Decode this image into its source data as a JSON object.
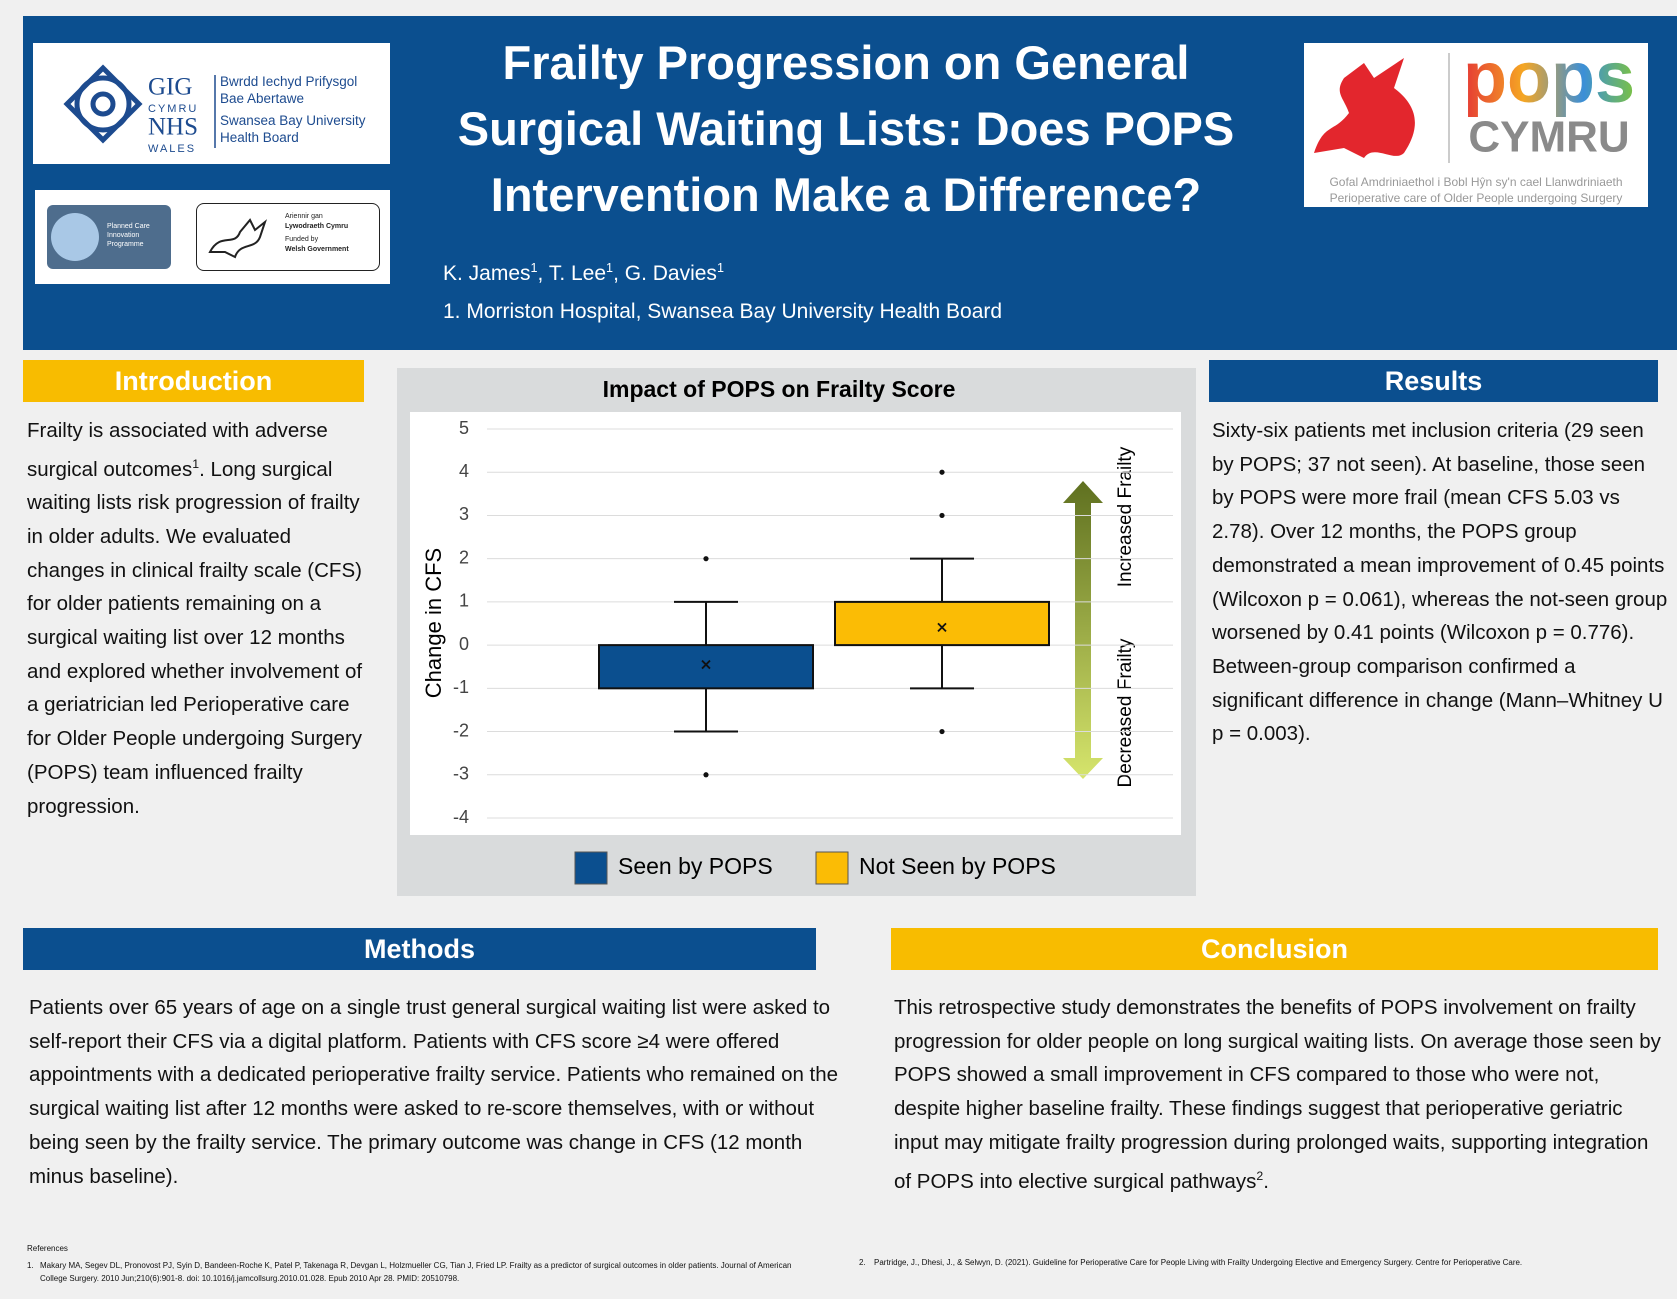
{
  "logos": {
    "nhs": {
      "gig": "GIG",
      "cymru": "CYMRU",
      "nhs": "NHS",
      "wales": "WALES",
      "welsh": "Bwrdd Iechyd Prifysgol Bae Abertawe",
      "english": "Swansea Bay University Health Board"
    },
    "planned_care": "Planned Care Innovation Programme",
    "government": {
      "welsh_small": "Ariennir gan",
      "welsh": "Lywodraeth Cymru",
      "english_small": "Funded by",
      "english": "Welsh Government"
    },
    "pops": {
      "pops": "pops",
      "cymru": "CYMRU",
      "welsh": "Gofal Amdriniaethol i Bobl Hŷn sy'n cael Llanwdriniaeth",
      "english": "Perioperative care of Older People undergoing Surgery"
    }
  },
  "header": {
    "title": [
      "Frailty Progression on General",
      "Surgical Waiting Lists: Does POPS",
      "Intervention Make a Difference?"
    ],
    "authors": [
      {
        "name": "K. James",
        "sup": "1"
      },
      {
        "name": ", T. Lee",
        "sup": "1"
      },
      {
        "name": ", G. Davies",
        "sup": "1"
      }
    ],
    "affiliation": "1. Morriston Hospital, Swansea Bay University Health Board"
  },
  "introduction": {
    "heading": "Introduction",
    "body": [
      "Frailty is associated with adverse surgical outcomes",
      "1",
      ". Long surgical waiting lists risk progression of frailty in older adults. We evaluated changes in clinical frailty scale (CFS) for older patients remaining on a surgical waiting list over 12 months and explored whether involvement of a geriatrician led Perioperative care for Older People undergoing Surgery (POPS) team influenced frailty progression."
    ]
  },
  "results": {
    "heading": "Results",
    "body": "Sixty-six patients met inclusion criteria (29 seen by POPS; 37 not seen). At baseline, those seen by POPS were more frail (mean CFS 5.03 vs 2.78). Over 12 months, the POPS group demonstrated a mean improvement of 0.45 points (Wilcoxon p = 0.061), whereas the not-seen group worsened by 0.41 points (Wilcoxon p = 0.776). Between-group comparison confirmed a significant difference in change (Mann–Whitney U p = 0.003)."
  },
  "methods": {
    "heading": "Methods",
    "body": "Patients over 65 years of age on a single trust general surgical waiting list were asked to self-report their CFS via a digital platform. Patients with CFS score ≥4 were offered appointments with a dedicated perioperative frailty service. Patients who remained on the surgical waiting list after 12 months were asked to re-score themselves, with or without being seen by the frailty service. The primary outcome was change in CFS (12 month minus baseline)."
  },
  "conclusion": {
    "heading": "Conclusion",
    "body": [
      "This retrospective study demonstrates the benefits of POPS involvement on frailty progression for older people on long surgical waiting lists. On average those seen by POPS showed a small improvement in CFS compared to those who were not, despite higher baseline frailty. These findings suggest that perioperative geriatric input may mitigate frailty progression during prolonged waits, supporting integration of POPS into elective surgical pathways",
      "2",
      "."
    ]
  },
  "references": {
    "heading": "References",
    "items": [
      {
        "number": "1.",
        "text": "Makary MA, Segev DL, Pronovost PJ, Syin D, Bandeen-Roche K, Patel P, Takenaga R, Devgan L, Holzmueller CG, Tian J, Fried LP. Frailty as a predictor of surgical outcomes in older patients. Journal of American College Surgery. 2010 Jun;210(6):901-8. doi: 10.1016/j.jamcollsurg.2010.01.028. Epub 2010 Apr 28. PMID: 20510798."
      },
      {
        "number": "2.",
        "text": "Partridge, J., Dhesi, J., & Selwyn, D. (2021). Guideline for Perioperative Care for People Living with Frailty Undergoing Elective and Emergency Surgery. Centre for Perioperative Care."
      }
    ]
  },
  "chart_data": {
    "type": "box",
    "title": "Impact of POPS on Frailty Score",
    "y_label": "Change in CFS",
    "ylim": [
      -4,
      5
    ],
    "yticks": [
      -4,
      -3,
      -2,
      -1,
      0,
      1,
      2,
      3,
      4,
      5
    ],
    "grid": true,
    "legend": "bottom",
    "annotations": [
      "Increased Frailty",
      "Decreased Frailty"
    ],
    "series": [
      {
        "name": "Seen by POPS",
        "color": "#0b4f8f",
        "whisker_low": -2,
        "q1": -1,
        "q3": 0,
        "whisker_high": 1,
        "mean": -0.45,
        "outliers": [
          2,
          -3
        ]
      },
      {
        "name": "Not Seen by POPS",
        "color": "#fbbc05",
        "whisker_low": -1,
        "q1": 0,
        "q3": 1,
        "whisker_high": 2,
        "mean": 0.41,
        "outliers": [
          4,
          3,
          -2
        ]
      }
    ]
  }
}
